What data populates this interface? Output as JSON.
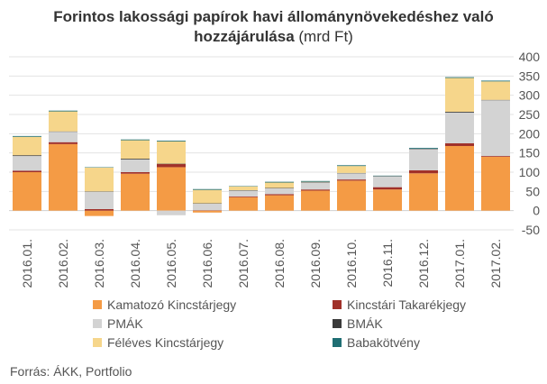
{
  "title_line1": "Forintos lakossági papírok havi állománynövekedéshez való",
  "title_line2_bold": "hozzájárulása",
  "title_line2_unit": " (mrd Ft)",
  "source": "Forrás: ÁKK, Portfolio",
  "chart_data": {
    "type": "bar",
    "stacked": true,
    "categories": [
      "2016.01.",
      "2016.02.",
      "2016.03.",
      "2016.04.",
      "2016.05.",
      "2016.06.",
      "2016.07.",
      "2016.08.",
      "2016.09.",
      "2016.10.",
      "2016.11.",
      "2016.12.",
      "2017.01.",
      "2017.02."
    ],
    "series": [
      {
        "name": "Kamatozó Kincstárjegy",
        "color": "#f49b45",
        "values": [
          100,
          173,
          -14,
          96,
          113,
          -5,
          35,
          40,
          52,
          78,
          55,
          97,
          168,
          140
        ]
      },
      {
        "name": "Kincstári Takarékjegy",
        "color": "#a0312a",
        "values": [
          4,
          5,
          4,
          4,
          8,
          1,
          2,
          3,
          3,
          3,
          6,
          8,
          7,
          2
        ]
      },
      {
        "name": "PMÁK",
        "color": "#d3d3d3",
        "values": [
          38,
          27,
          45,
          33,
          -12,
          17,
          15,
          15,
          18,
          16,
          28,
          55,
          80,
          145
        ]
      },
      {
        "name": "BMÁK",
        "color": "#3a3a3a",
        "values": [
          2,
          1,
          1,
          2,
          1,
          1,
          1,
          1,
          1,
          1,
          1,
          1,
          2,
          1
        ]
      },
      {
        "name": "Féléves Kincstárjegy",
        "color": "#f6d68b",
        "values": [
          48,
          52,
          62,
          48,
          58,
          35,
          10,
          14,
          1,
          18,
          0,
          0,
          88,
          48
        ]
      },
      {
        "name": "Babakötvény",
        "color": "#1f6e73",
        "values": [
          2,
          2,
          1,
          2,
          2,
          2,
          1,
          2,
          2,
          2,
          1,
          2,
          2,
          2
        ]
      }
    ],
    "ylim": [
      -50,
      400
    ],
    "yticks": [
      -50,
      0,
      50,
      100,
      150,
      200,
      250,
      300,
      350,
      400
    ],
    "grid": true,
    "legend_position": "bottom"
  }
}
